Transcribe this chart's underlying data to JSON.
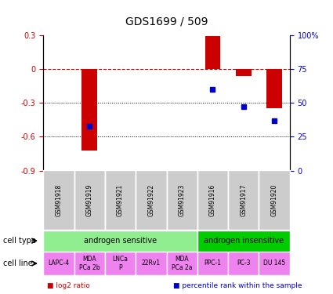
{
  "title": "GDS1699 / 509",
  "samples": [
    "GSM91918",
    "GSM91919",
    "GSM91921",
    "GSM91922",
    "GSM91923",
    "GSM91916",
    "GSM91917",
    "GSM91920"
  ],
  "log2_ratio": [
    0.0,
    -0.72,
    0.0,
    0.0,
    0.0,
    0.29,
    -0.06,
    -0.35
  ],
  "percentile_rank": [
    null,
    33,
    null,
    null,
    null,
    60,
    47,
    37
  ],
  "ylim_left": [
    -0.9,
    0.3
  ],
  "ylim_right": [
    0,
    100
  ],
  "cell_type_groups": [
    {
      "label": "androgen sensitive",
      "start": 0,
      "end": 5,
      "color": "#90EE90"
    },
    {
      "label": "androgen insensitive",
      "start": 5,
      "end": 8,
      "color": "#00CC00"
    }
  ],
  "cell_lines": [
    {
      "label": "LAPC-4",
      "start": 0,
      "end": 1,
      "multiline": false
    },
    {
      "label": "MDA\nPCa 2b",
      "start": 1,
      "end": 2,
      "multiline": true
    },
    {
      "label": "LNCa\nP",
      "start": 2,
      "end": 3,
      "multiline": true
    },
    {
      "label": "22Rv1",
      "start": 3,
      "end": 4,
      "multiline": false
    },
    {
      "label": "MDA\nPCa 2a",
      "start": 4,
      "end": 5,
      "multiline": true
    },
    {
      "label": "PPC-1",
      "start": 5,
      "end": 6,
      "multiline": false
    },
    {
      "label": "PC-3",
      "start": 6,
      "end": 7,
      "multiline": false
    },
    {
      "label": "DU 145",
      "start": 7,
      "end": 8,
      "multiline": false
    }
  ],
  "cell_line_color": "#EE82EE",
  "gsm_label_color": "#CCCCCC",
  "bar_color": "#CC0000",
  "dot_color": "#0000CC",
  "zero_line_color": "#CC0000",
  "grid_color": "#000000",
  "right_axis_color": "#0000CC"
}
